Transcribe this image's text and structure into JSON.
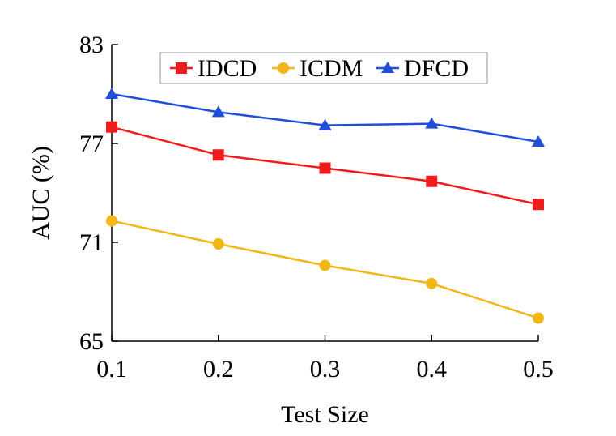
{
  "chart_data": {
    "type": "line",
    "title": "",
    "xlabel": "Test Size",
    "ylabel": "AUC (%)",
    "x": [
      0.1,
      0.2,
      0.3,
      0.4,
      0.5
    ],
    "x_tick_labels": [
      "0.1",
      "0.2",
      "0.3",
      "0.4",
      "0.5"
    ],
    "y_ticks": [
      65,
      71,
      77,
      83
    ],
    "y_tick_labels": [
      "65",
      "71",
      "77",
      "83"
    ],
    "ylim": [
      65,
      83
    ],
    "grid": false,
    "legend_position": "top-center",
    "series": [
      {
        "name": "IDCD",
        "color": "#ee1c1c",
        "marker": "square",
        "values": [
          78.0,
          76.3,
          75.5,
          74.7,
          73.3
        ]
      },
      {
        "name": "ICDM",
        "color": "#f2b616",
        "marker": "circle",
        "values": [
          72.3,
          70.9,
          69.6,
          68.5,
          66.4
        ]
      },
      {
        "name": "DFCD",
        "color": "#1f4ed8",
        "marker": "triangle",
        "values": [
          80.0,
          78.9,
          78.1,
          78.2,
          77.1
        ]
      }
    ]
  }
}
